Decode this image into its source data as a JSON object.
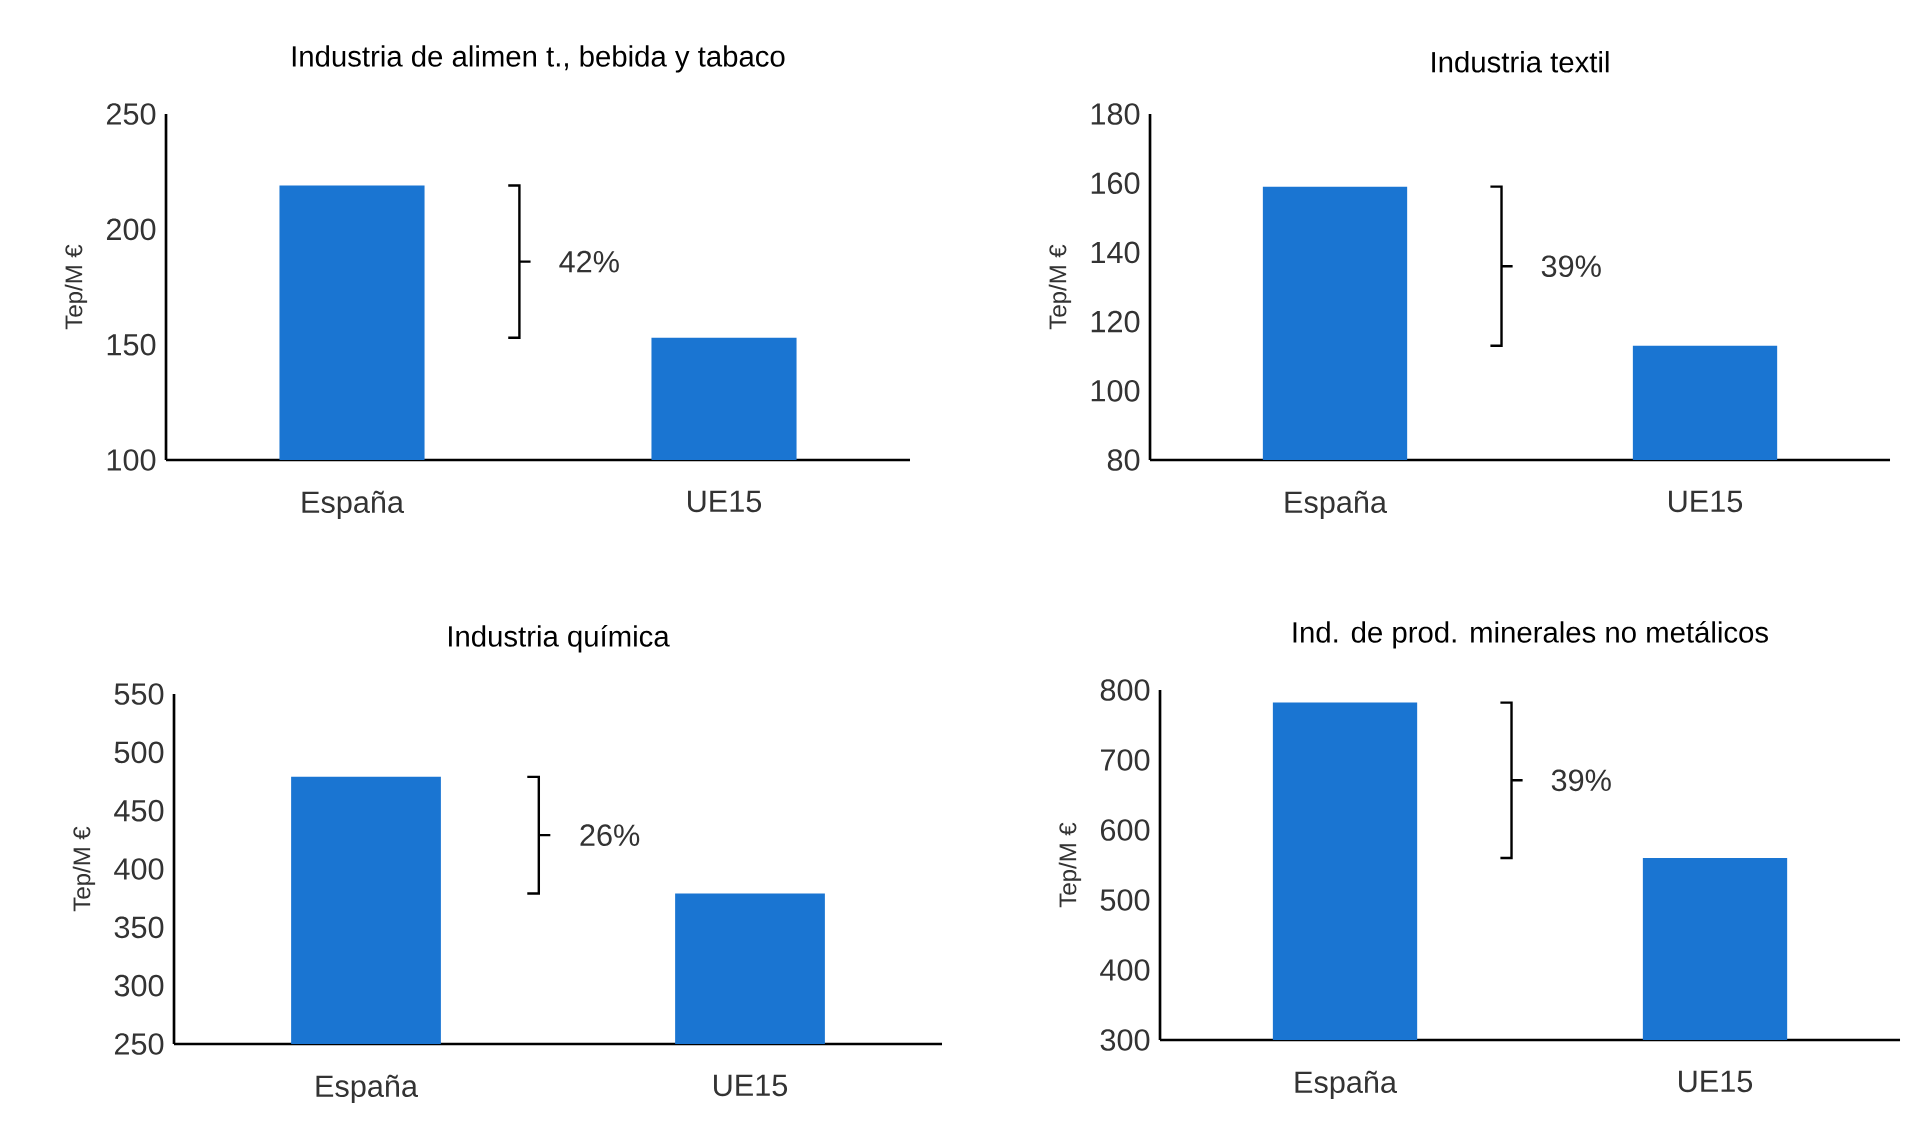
{
  "chart_data": [
    {
      "type": "bar",
      "title": "Industria de alimen t., bebida y tabaco",
      "ylabel": "Tep/M €",
      "categories": [
        "España",
        "UE15"
      ],
      "values": [
        219,
        153
      ],
      "color": "#1a75d2",
      "ylim": [
        100,
        250
      ],
      "yticks": [
        100,
        150,
        200,
        250
      ],
      "annotations": [
        "42%"
      ]
    },
    {
      "type": "bar",
      "title": "Industria textil",
      "ylabel": "Tep/M €",
      "categories": [
        "España",
        "UE15"
      ],
      "values": [
        159,
        113
      ],
      "color": "#1a75d2",
      "ylim": [
        80,
        180
      ],
      "yticks": [
        80,
        100,
        120,
        140,
        160,
        180
      ],
      "annotations": [
        "39%"
      ]
    },
    {
      "type": "bar",
      "title": "Industria química",
      "ylabel": "Tep/M €",
      "categories": [
        "España",
        "UE15"
      ],
      "values": [
        479,
        379
      ],
      "color": "#1a75d2",
      "ylim": [
        250,
        550
      ],
      "yticks": [
        250,
        300,
        350,
        400,
        450,
        500,
        550
      ],
      "annotations": [
        "26%"
      ]
    },
    {
      "type": "bar",
      "title": "Ind. de prod. minerales no metálicos",
      "ylabel": "Tep/M €",
      "categories": [
        "España",
        "UE15"
      ],
      "values": [
        782,
        560
      ],
      "color": "#1a75d2",
      "ylim": [
        300,
        800
      ],
      "yticks": [
        300,
        400,
        500,
        600,
        700,
        800
      ],
      "annotations": [
        "39%"
      ]
    }
  ]
}
